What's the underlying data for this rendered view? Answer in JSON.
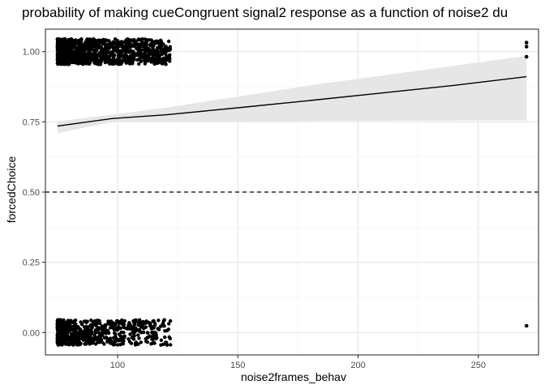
{
  "chart_data": {
    "type": "scatter",
    "title": "probability of making cueCongruent signal2 response as a function of noise2 du",
    "xlabel": "noise2frames_behav",
    "ylabel": "forcedChoice",
    "xlim": [
      70,
      275
    ],
    "ylim": [
      -0.08,
      1.08
    ],
    "x_ticks": [
      100,
      150,
      200,
      250
    ],
    "y_ticks": [
      0.0,
      0.25,
      0.5,
      0.75,
      1.0
    ],
    "x_tick_labels": [
      "100",
      "150",
      "200",
      "250"
    ],
    "y_tick_labels": [
      "0.00",
      "0.25",
      "0.50",
      "0.75",
      "1.00"
    ],
    "reference_line": {
      "y": 0.5,
      "style": "dashed"
    },
    "fit_line": {
      "x": [
        75,
        98,
        120,
        150,
        180,
        210,
        240,
        270
      ],
      "y": [
        0.735,
        0.762,
        0.775,
        0.8,
        0.826,
        0.853,
        0.88,
        0.911
      ]
    },
    "confidence_band": {
      "x": [
        75,
        98,
        120,
        150,
        180,
        210,
        240,
        270
      ],
      "lower": [
        0.71,
        0.75,
        0.752,
        0.752,
        0.753,
        0.754,
        0.755,
        0.755
      ],
      "upper": [
        0.752,
        0.776,
        0.8,
        0.84,
        0.88,
        0.915,
        0.95,
        0.985
      ]
    },
    "point_clusters": [
      {
        "y_level": 1,
        "x_range": [
          75,
          122
        ],
        "count": 1100,
        "jitter": 0.045,
        "skew": 1.6
      },
      {
        "y_level": 0,
        "x_range": [
          75,
          122
        ],
        "count": 650,
        "jitter": 0.045,
        "skew": 2.2
      }
    ],
    "outlier_points": [
      {
        "x": 270,
        "y": 1.032
      },
      {
        "x": 270,
        "y": 1.018
      },
      {
        "x": 270,
        "y": 0.982
      },
      {
        "x": 270,
        "y": 0.024
      }
    ],
    "grid": true,
    "panel_border": true,
    "colors": {
      "points": "#000000",
      "fit_line": "#000000",
      "band": "#e6e6e6",
      "grid_major": "#e5e5e5",
      "grid_minor": "#f2f2f2",
      "border": "#333333"
    }
  }
}
